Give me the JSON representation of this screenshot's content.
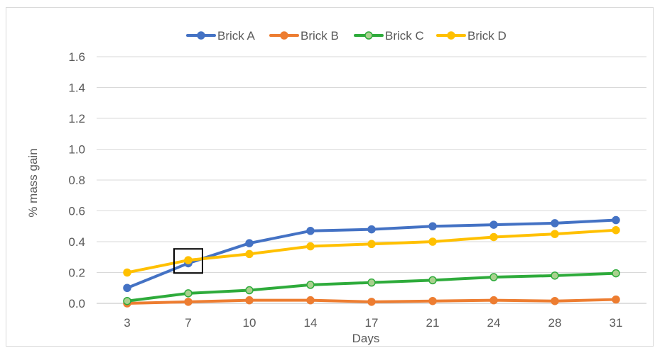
{
  "chart_data": {
    "type": "line",
    "title": "",
    "xlabel": "Days",
    "ylabel": "% mass gain",
    "categories": [
      "3",
      "7",
      "10",
      "14",
      "17",
      "21",
      "24",
      "28",
      "31"
    ],
    "ylim": [
      0,
      1.6
    ],
    "yticks": [
      "0.0",
      "0.2",
      "0.4",
      "0.6",
      "0.8",
      "1.0",
      "1.2",
      "1.4",
      "1.6"
    ],
    "grid": true,
    "legend_position": "top",
    "series": [
      {
        "name": "Brick A",
        "color": "#4472c4",
        "marker_fill": "#4472c4",
        "values": [
          0.1,
          0.26,
          0.39,
          0.47,
          0.48,
          0.5,
          0.51,
          0.52,
          0.54
        ]
      },
      {
        "name": "Brick B",
        "color": "#ed7d31",
        "marker_fill": "#ed7d31",
        "values": [
          0.0,
          0.01,
          0.02,
          0.02,
          0.01,
          0.015,
          0.02,
          0.015,
          0.025
        ]
      },
      {
        "name": "Brick C",
        "color": "#2eab3b",
        "marker_fill": "#a9d18e",
        "values": [
          0.015,
          0.065,
          0.085,
          0.12,
          0.135,
          0.15,
          0.17,
          0.18,
          0.195
        ]
      },
      {
        "name": "Brick D",
        "color": "#ffc000",
        "marker_fill": "#ffc000",
        "values": [
          0.2,
          0.28,
          0.32,
          0.37,
          0.385,
          0.4,
          0.43,
          0.45,
          0.475
        ]
      }
    ],
    "annotation": {
      "type": "box",
      "category": "7",
      "center_value": 0.275
    }
  }
}
